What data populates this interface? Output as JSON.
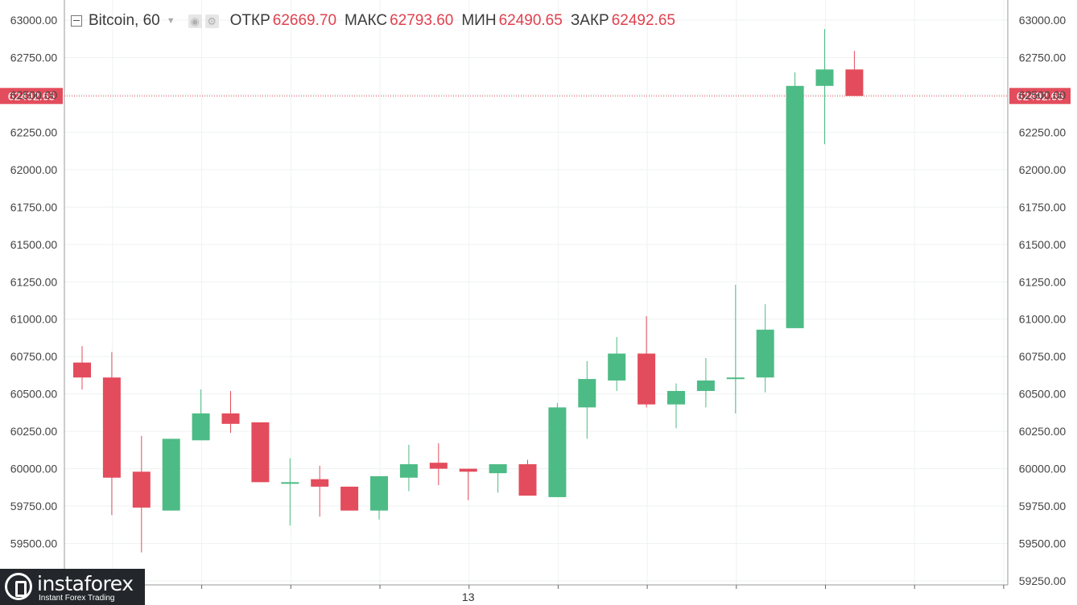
{
  "header": {
    "symbol": "Bitcoin, 60",
    "open_label": "ОТКР",
    "open_value": "62669.70",
    "high_label": "МАКС",
    "high_value": "62793.60",
    "low_label": "МИН",
    "low_value": "62490.65",
    "close_label": "ЗАКР",
    "close_value": "62492.65"
  },
  "logo": {
    "brand": "instaforex",
    "tagline": "Instant Forex Trading"
  },
  "chart_data": {
    "type": "candlestick",
    "ylim": [
      59250,
      63000
    ],
    "y_ticks": [
      63000,
      62750,
      62500,
      62250,
      62000,
      61750,
      61500,
      61250,
      61000,
      60750,
      60500,
      60250,
      60000,
      59750,
      59500,
      59250
    ],
    "y_tick_labels": [
      "63000.00",
      "62750.00",
      "62500.00",
      "62250.00",
      "62000.00",
      "61750.00",
      "61500.00",
      "61250.00",
      "61000.00",
      "60750.00",
      "60500.00",
      "60250.00",
      "60000.00",
      "59750.00",
      "59500.00",
      "59250.00"
    ],
    "x_tick_labels": [
      {
        "index": 13,
        "label": "13"
      }
    ],
    "last_price": 62492.65,
    "last_price_label": "62492.65",
    "colors": {
      "up": "#4dbb85",
      "down": "#e34c5c",
      "price_line": "#e34c5c",
      "grid": "#eef3f1"
    },
    "candles": [
      {
        "o": 60710,
        "h": 60820,
        "l": 60530,
        "c": 60610
      },
      {
        "o": 60610,
        "h": 60780,
        "l": 59690,
        "c": 59940
      },
      {
        "o": 59980,
        "h": 60220,
        "l": 59440,
        "c": 59740
      },
      {
        "o": 59720,
        "h": 60200,
        "l": 59720,
        "c": 60200
      },
      {
        "o": 60190,
        "h": 60530,
        "l": 60190,
        "c": 60370
      },
      {
        "o": 60370,
        "h": 60520,
        "l": 60240,
        "c": 60300
      },
      {
        "o": 60310,
        "h": 60310,
        "l": 59910,
        "c": 59910
      },
      {
        "o": 59900,
        "h": 60070,
        "l": 59620,
        "c": 59910
      },
      {
        "o": 59930,
        "h": 60020,
        "l": 59680,
        "c": 59880
      },
      {
        "o": 59880,
        "h": 59880,
        "l": 59720,
        "c": 59720
      },
      {
        "o": 59720,
        "h": 59950,
        "l": 59660,
        "c": 59950
      },
      {
        "o": 59940,
        "h": 60160,
        "l": 59850,
        "c": 60030
      },
      {
        "o": 60040,
        "h": 60170,
        "l": 59890,
        "c": 60000
      },
      {
        "o": 60000,
        "h": 60000,
        "l": 59790,
        "c": 59980
      },
      {
        "o": 59970,
        "h": 60030,
        "l": 59840,
        "c": 60030
      },
      {
        "o": 60030,
        "h": 60060,
        "l": 59820,
        "c": 59820
      },
      {
        "o": 59810,
        "h": 60440,
        "l": 59810,
        "c": 60410
      },
      {
        "o": 60410,
        "h": 60720,
        "l": 60200,
        "c": 60600
      },
      {
        "o": 60590,
        "h": 60880,
        "l": 60520,
        "c": 60770
      },
      {
        "o": 60770,
        "h": 61020,
        "l": 60410,
        "c": 60430
      },
      {
        "o": 60430,
        "h": 60570,
        "l": 60270,
        "c": 60520
      },
      {
        "o": 60520,
        "h": 60740,
        "l": 60410,
        "c": 60590
      },
      {
        "o": 60600,
        "h": 61230,
        "l": 60370,
        "c": 60610
      },
      {
        "o": 60610,
        "h": 61100,
        "l": 60510,
        "c": 60930
      },
      {
        "o": 60940,
        "h": 62650,
        "l": 60940,
        "c": 62560
      },
      {
        "o": 62560,
        "h": 62940,
        "l": 62170,
        "c": 62670
      },
      {
        "o": 62670,
        "h": 62794,
        "l": 62491,
        "c": 62493
      }
    ]
  }
}
